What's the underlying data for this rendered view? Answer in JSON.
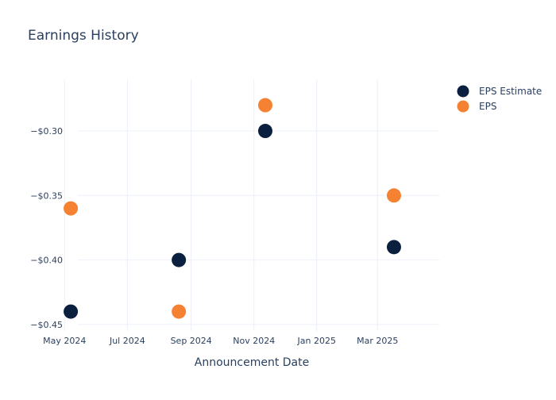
{
  "chart_data": {
    "type": "scatter",
    "title": "Earnings History",
    "xlabel": "Announcement Date",
    "ylabel": "",
    "x_ticks": [
      {
        "date": "2024-05-01",
        "label": "May 2024"
      },
      {
        "date": "2024-07-01",
        "label": "Jul 2024"
      },
      {
        "date": "2024-09-01",
        "label": "Sep 2024"
      },
      {
        "date": "2024-11-01",
        "label": "Nov 2024"
      },
      {
        "date": "2025-01-01",
        "label": "Jan 2025"
      },
      {
        "date": "2025-03-01",
        "label": "Mar 2025"
      }
    ],
    "y_ticks": [
      {
        "value": -0.3,
        "label": "−$0.30"
      },
      {
        "value": -0.35,
        "label": "−$0.35"
      },
      {
        "value": -0.4,
        "label": "−$0.40"
      },
      {
        "value": -0.45,
        "label": "−$0.45"
      }
    ],
    "xlim": [
      "2024-04-30",
      "2025-04-30"
    ],
    "ylim": [
      -0.455,
      -0.26
    ],
    "grid": true,
    "legend_position": "top-right",
    "series": [
      {
        "name": "EPS Estimate",
        "color": "#0b1f3f",
        "points": [
          {
            "x": "2024-05-07",
            "y": -0.44
          },
          {
            "x": "2024-08-20",
            "y": -0.4
          },
          {
            "x": "2024-11-12",
            "y": -0.3
          },
          {
            "x": "2025-03-17",
            "y": -0.39
          }
        ]
      },
      {
        "name": "EPS",
        "color": "#f58233",
        "points": [
          {
            "x": "2024-05-07",
            "y": -0.36
          },
          {
            "x": "2024-08-20",
            "y": -0.44
          },
          {
            "x": "2024-11-12",
            "y": -0.28
          },
          {
            "x": "2025-03-17",
            "y": -0.35
          }
        ]
      }
    ]
  }
}
